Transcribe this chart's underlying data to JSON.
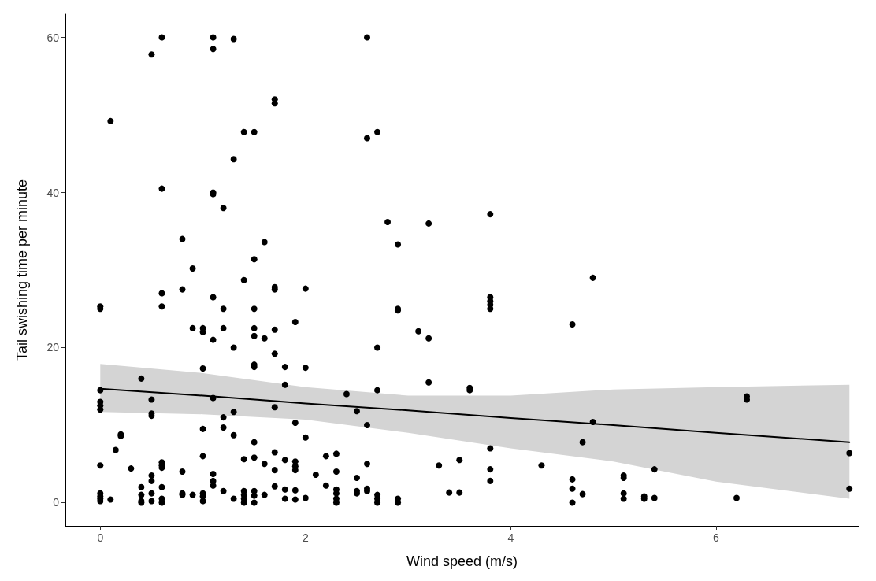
{
  "chart_data": {
    "type": "scatter",
    "xlabel": "Wind speed (m/s)",
    "ylabel": "Tail swishing time per minute",
    "xlim": [
      -0.34,
      7.39
    ],
    "xticks": [
      0,
      2,
      4,
      6
    ],
    "ylim": [
      -3,
      63
    ],
    "yticks": [
      0,
      20,
      40,
      60
    ],
    "grid": false,
    "series": [
      {
        "marker": "circle",
        "color": "#000000",
        "x": [
          0,
          0,
          0,
          0,
          0,
          0,
          0,
          0,
          0,
          0,
          0,
          0.1,
          0.1,
          0.15,
          0.2,
          0.2,
          0.3,
          0.4,
          0.4,
          0.4,
          0.4,
          0.4,
          0.5,
          0.5,
          0.5,
          0.5,
          0.5,
          0.5,
          0.5,
          0.5,
          0.6,
          0.6,
          0.6,
          0.6,
          0.6,
          0.6,
          0.6,
          0.6,
          0.6,
          0.6,
          0.8,
          0.8,
          0.8,
          0.8,
          0.8,
          0.9,
          0.9,
          0.9,
          1,
          1,
          1,
          1,
          1,
          1,
          1,
          1,
          1.1,
          1.1,
          1.1,
          1.1,
          1.1,
          1.1,
          1.1,
          1.1,
          1.1,
          1.1,
          1.2,
          1.2,
          1.2,
          1.2,
          1.2,
          1.2,
          1.3,
          1.3,
          1.3,
          1.3,
          1.3,
          1.3,
          1.4,
          1.4,
          1.4,
          1.4,
          1.4,
          1.4,
          1.4,
          1.5,
          1.5,
          1.5,
          1.5,
          1.5,
          1.5,
          1.5,
          1.5,
          1.5,
          1.5,
          1.5,
          1.5,
          1.6,
          1.6,
          1.6,
          1.6,
          1.7,
          1.7,
          1.7,
          1.7,
          1.7,
          1.7,
          1.7,
          1.7,
          1.7,
          1.7,
          1.8,
          1.8,
          1.8,
          1.8,
          1.8,
          1.9,
          1.9,
          1.9,
          1.9,
          1.9,
          1.9,
          1.9,
          2,
          2,
          2,
          2,
          2.1,
          2.2,
          2.2,
          2.3,
          2.3,
          2.3,
          2.3,
          2.3,
          2.3,
          2.4,
          2.5,
          2.5,
          2.5,
          2.5,
          2.6,
          2.6,
          2.6,
          2.6,
          2.6,
          2.6,
          2.7,
          2.7,
          2.7,
          2.7,
          2.7,
          2.7,
          2.8,
          2.9,
          2.9,
          2.9,
          2.9,
          2.9,
          3.1,
          3.2,
          3.2,
          3.2,
          3.3,
          3.4,
          3.5,
          3.5,
          3.6,
          3.6,
          3.8,
          3.8,
          3.8,
          3.8,
          3.8,
          3.8,
          3.8,
          3.8,
          4.3,
          4.6,
          4.6,
          4.6,
          4.6,
          4.7,
          4.7,
          4.8,
          4.8,
          5.1,
          5.1,
          5.1,
          5.1,
          5.3,
          5.3,
          5.4,
          5.4,
          6.2,
          6.3,
          6.3,
          7.3,
          7.3
        ],
        "values": [
          25.3,
          25,
          14.5,
          13,
          12.5,
          12,
          4.8,
          1.2,
          0.8,
          0.5,
          0.2,
          49.2,
          0.4,
          6.8,
          8.8,
          8.6,
          4.4,
          16,
          2,
          1,
          0.2,
          0,
          57.8,
          13.3,
          11.5,
          11.2,
          3.5,
          2.8,
          1.2,
          0.2,
          60,
          40.5,
          27,
          25.3,
          5.2,
          4.8,
          4.5,
          2,
          0.5,
          0,
          34,
          27.5,
          4,
          1.2,
          1,
          30.2,
          22.5,
          1,
          22.5,
          22,
          17.3,
          9.5,
          6,
          1.2,
          0.8,
          0.2,
          60,
          58.5,
          40,
          39.8,
          26.5,
          21,
          13.5,
          3.7,
          2.8,
          2.2,
          38,
          25,
          22.5,
          11,
          9.7,
          1.5,
          59.8,
          44.3,
          20,
          11.7,
          8.7,
          0.5,
          47.8,
          28.7,
          5.6,
          1.5,
          1,
          0.5,
          0,
          47.8,
          31.4,
          25,
          22.5,
          21.5,
          17.8,
          17.5,
          7.8,
          5.8,
          1.5,
          0.9,
          0,
          33.6,
          21.2,
          5,
          1,
          52,
          51.5,
          27.8,
          27.5,
          22.3,
          19.2,
          12.3,
          6.5,
          4.2,
          2.1,
          17.5,
          15.2,
          5.5,
          1.7,
          0.5,
          23.3,
          10.3,
          5.3,
          4.7,
          4.2,
          1.6,
          0.4,
          27.6,
          17.4,
          8.4,
          0.6,
          3.6,
          6,
          2.2,
          6.3,
          4,
          1.7,
          1.2,
          0.5,
          0,
          14,
          11.8,
          3.2,
          1.5,
          1.2,
          60,
          47,
          10,
          5,
          1.8,
          1.5,
          47.8,
          20,
          14.5,
          1,
          0.5,
          0,
          36.2,
          33.3,
          25,
          24.8,
          0.5,
          0,
          22.1,
          36,
          21.2,
          15.5,
          4.8,
          1.3,
          5.5,
          1.3,
          14.8,
          14.5,
          37.2,
          26.5,
          26,
          25.5,
          25,
          7,
          4.3,
          2.8,
          4.8,
          23,
          3,
          1.8,
          0,
          7.8,
          1.1,
          29,
          10.4,
          3.5,
          3.2,
          1.2,
          0.5,
          0.8,
          0.5,
          4.3,
          0.6,
          0.6,
          13.7,
          13.3,
          6.4,
          1.8
        ]
      },
      {
        "type": "line",
        "color": "#000000",
        "x": [
          0,
          1,
          2,
          3,
          4,
          5,
          6,
          7.3
        ],
        "values": [
          14.7,
          13.8,
          12.8,
          11.9,
          10.9,
          10.0,
          9.0,
          7.8
        ],
        "lower": [
          11.7,
          11.4,
          10.7,
          9.0,
          7.0,
          5.3,
          2.7,
          0.5
        ],
        "upper": [
          17.9,
          16.7,
          14.9,
          13.8,
          13.8,
          14.6,
          14.9,
          15.2
        ]
      }
    ]
  }
}
